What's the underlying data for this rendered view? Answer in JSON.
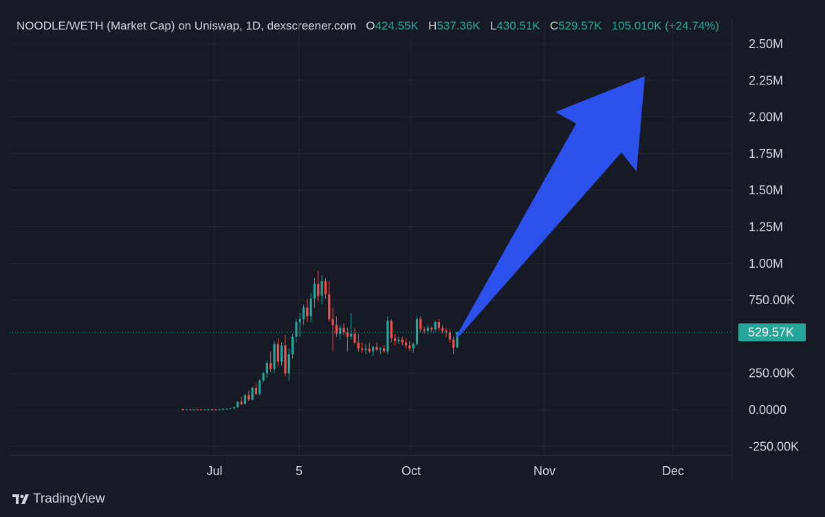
{
  "legend": {
    "title": "NOODLE/WETH (Market Cap) on Uniswap, 1D, dexscreener.com",
    "open_label": "O",
    "open_value": "424.55K",
    "high_label": "H",
    "high_value": "537.36K",
    "low_label": "L",
    "low_value": "430.51K",
    "close_label": "C",
    "close_value": "529.57K",
    "change": "105.010K (+24.74%)"
  },
  "price_tag": "529.57K",
  "footer": {
    "brand": "TradingView",
    "logo_icon": "tradingview-logo-icon"
  },
  "colors": {
    "up": "#26a69a",
    "down": "#ef5350",
    "arrow": "#2c50ec",
    "background": "#161a25"
  },
  "chart_data": {
    "type": "candlestick",
    "title": "NOODLE/WETH (Market Cap) on Uniswap, 1D, dexscreener.com",
    "ylim": [
      -300000,
      2620000
    ],
    "y_ticks": [
      {
        "value": 2500000,
        "label": "2.50M"
      },
      {
        "value": 2250000,
        "label": "2.25M"
      },
      {
        "value": 2000000,
        "label": "2.00M"
      },
      {
        "value": 1750000,
        "label": "1.75M"
      },
      {
        "value": 1500000,
        "label": "1.50M"
      },
      {
        "value": 1250000,
        "label": "1.25M"
      },
      {
        "value": 1000000,
        "label": "1.00M"
      },
      {
        "value": 750000,
        "label": "750.00K"
      },
      {
        "value": 250000,
        "label": "250.00K"
      },
      {
        "value": 0,
        "label": "0.0000"
      },
      {
        "value": -250000,
        "label": "-250.00K"
      }
    ],
    "x_ticks": [
      "Jul",
      "5",
      "Oct",
      "Nov",
      "Dec"
    ],
    "grid": true,
    "last_close": 529570,
    "annotation": "upward arrow from last candle",
    "series": [
      {
        "values": [
          [
            5000,
            8000,
            -5000,
            0
          ],
          [
            0,
            4000,
            -3000,
            2000
          ],
          [
            2000,
            5000,
            -2000,
            1000
          ],
          [
            1000,
            4000,
            -2000,
            3000
          ],
          [
            3000,
            6000,
            -1000,
            2000
          ],
          [
            2000,
            5000,
            -2000,
            1000
          ],
          [
            1000,
            4000,
            -3000,
            2000
          ],
          [
            2000,
            5000,
            -1000,
            3000
          ],
          [
            3000,
            6000,
            -1000,
            2000
          ],
          [
            2000,
            5000,
            -2000,
            1000
          ],
          [
            1000,
            4000,
            -2000,
            3000
          ],
          [
            3000,
            8000,
            -1000,
            6000
          ],
          [
            6000,
            10000,
            2000,
            8000
          ],
          [
            8000,
            14000,
            5000,
            12000
          ],
          [
            12000,
            20000,
            8000,
            18000
          ],
          [
            18000,
            60000,
            15000,
            55000
          ],
          [
            55000,
            90000,
            30000,
            40000
          ],
          [
            40000,
            110000,
            35000,
            100000
          ],
          [
            100000,
            130000,
            60000,
            70000
          ],
          [
            70000,
            160000,
            65000,
            150000
          ],
          [
            150000,
            180000,
            100000,
            110000
          ],
          [
            110000,
            210000,
            100000,
            200000
          ],
          [
            200000,
            260000,
            190000,
            250000
          ],
          [
            250000,
            340000,
            220000,
            320000
          ],
          [
            320000,
            400000,
            260000,
            280000
          ],
          [
            280000,
            470000,
            250000,
            450000
          ],
          [
            450000,
            490000,
            300000,
            330000
          ],
          [
            330000,
            460000,
            300000,
            440000
          ],
          [
            440000,
            510000,
            230000,
            250000
          ],
          [
            250000,
            420000,
            200000,
            380000
          ],
          [
            380000,
            520000,
            350000,
            500000
          ],
          [
            500000,
            620000,
            460000,
            600000
          ],
          [
            600000,
            660000,
            500000,
            620000
          ],
          [
            620000,
            720000,
            580000,
            700000
          ],
          [
            700000,
            760000,
            600000,
            640000
          ],
          [
            640000,
            800000,
            600000,
            760000
          ],
          [
            760000,
            900000,
            700000,
            860000
          ],
          [
            860000,
            950000,
            740000,
            780000
          ],
          [
            780000,
            920000,
            720000,
            880000
          ],
          [
            880000,
            900000,
            760000,
            790000
          ],
          [
            790000,
            880000,
            600000,
            620000
          ],
          [
            620000,
            700000,
            400000,
            580000
          ],
          [
            580000,
            640000,
            500000,
            520000
          ],
          [
            520000,
            580000,
            480000,
            560000
          ],
          [
            560000,
            590000,
            510000,
            530000
          ],
          [
            530000,
            560000,
            400000,
            500000
          ],
          [
            500000,
            660000,
            480000,
            520000
          ],
          [
            520000,
            560000,
            450000,
            460000
          ],
          [
            460000,
            520000,
            400000,
            420000
          ],
          [
            420000,
            460000,
            390000,
            410000
          ],
          [
            410000,
            450000,
            380000,
            420000
          ],
          [
            420000,
            460000,
            390000,
            400000
          ],
          [
            400000,
            440000,
            370000,
            430000
          ],
          [
            430000,
            460000,
            400000,
            410000
          ],
          [
            410000,
            430000,
            380000,
            420000
          ],
          [
            420000,
            440000,
            390000,
            400000
          ],
          [
            400000,
            640000,
            380000,
            610000
          ],
          [
            610000,
            620000,
            460000,
            490000
          ],
          [
            490000,
            520000,
            440000,
            470000
          ],
          [
            470000,
            500000,
            450000,
            480000
          ],
          [
            480000,
            500000,
            440000,
            460000
          ],
          [
            460000,
            490000,
            420000,
            440000
          ],
          [
            440000,
            470000,
            400000,
            420000
          ],
          [
            420000,
            460000,
            390000,
            450000
          ],
          [
            450000,
            640000,
            440000,
            620000
          ],
          [
            620000,
            640000,
            530000,
            550000
          ],
          [
            550000,
            570000,
            520000,
            540000
          ],
          [
            540000,
            580000,
            520000,
            560000
          ],
          [
            560000,
            570000,
            530000,
            550000
          ],
          [
            550000,
            610000,
            530000,
            600000
          ],
          [
            600000,
            620000,
            540000,
            560000
          ],
          [
            560000,
            580000,
            520000,
            540000
          ],
          [
            540000,
            560000,
            500000,
            530000
          ],
          [
            530000,
            550000,
            460000,
            480000
          ],
          [
            480000,
            500000,
            380000,
            424550
          ],
          [
            424550,
            537360,
            430510,
            529570
          ]
        ]
      }
    ]
  }
}
